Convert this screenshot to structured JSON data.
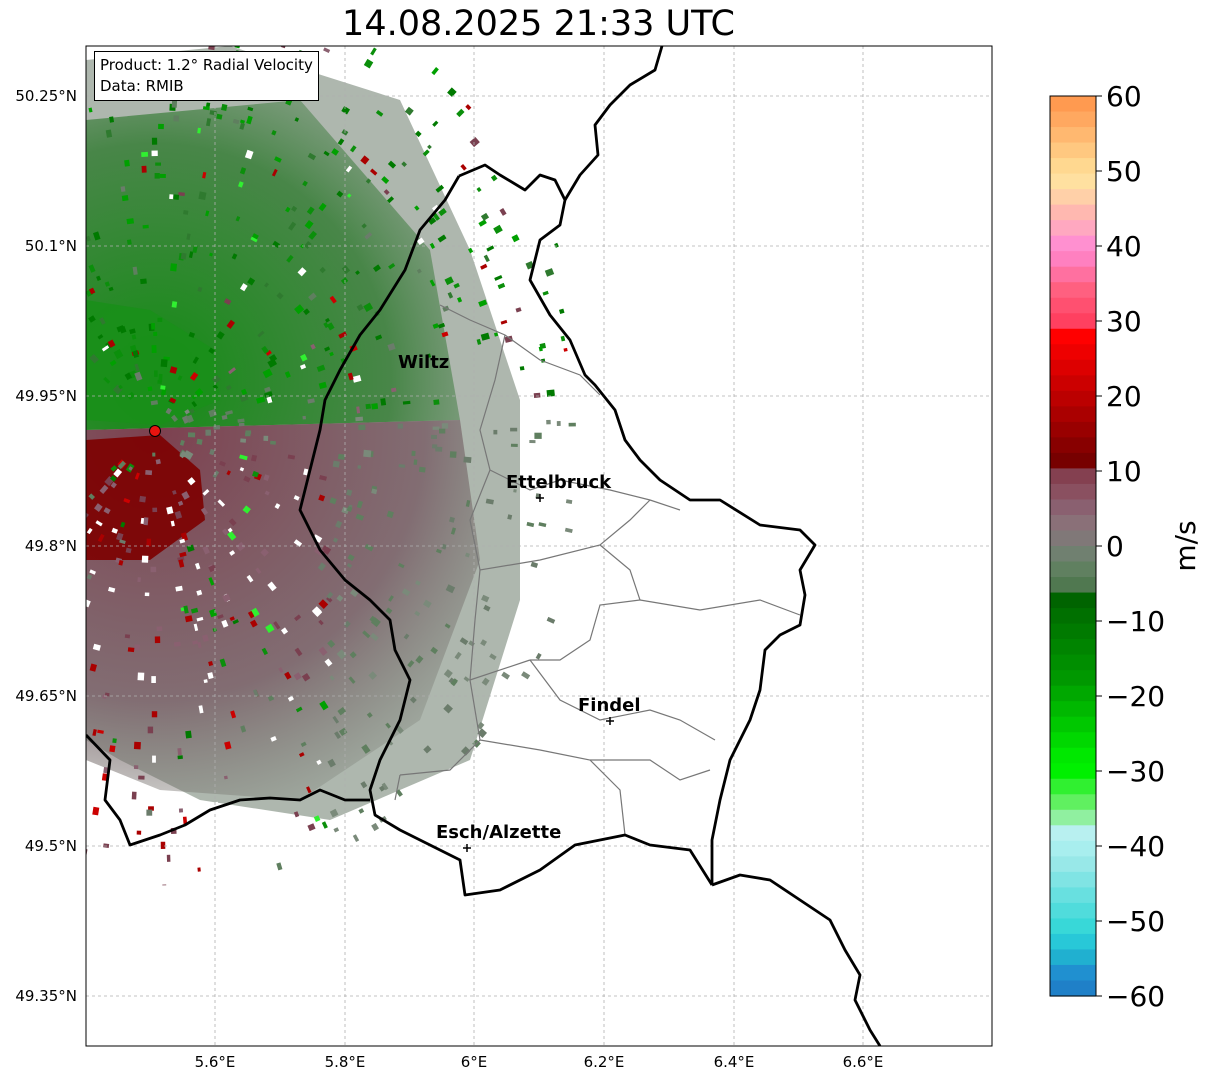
{
  "title": "14.08.2025 21:33 UTC",
  "info": {
    "product": "Product: 1.2° Radial Velocity",
    "data": "Data: RMIB"
  },
  "axes": {
    "lat_ticks": [
      "50.25°N",
      "50.1°N",
      "49.95°N",
      "49.8°N",
      "49.65°N",
      "49.5°N",
      "49.35°N"
    ],
    "lon_ticks": [
      "5.6°E",
      "5.8°E",
      "6°E",
      "6.2°E",
      "6.4°E",
      "6.6°E"
    ],
    "grid": true
  },
  "cities": [
    {
      "name": "Wiltz",
      "marker": false
    },
    {
      "name": "Ettelbruck",
      "marker": true
    },
    {
      "name": "Findel",
      "marker": true
    },
    {
      "name": "Esch/Alzette",
      "marker": true
    }
  ],
  "radar_site_color": "#e8140f",
  "colorbar": {
    "label": "m/s",
    "ticks": [
      "60",
      "50",
      "40",
      "30",
      "20",
      "10",
      "0",
      "−10",
      "−20",
      "−30",
      "−40",
      "−50",
      "−60"
    ],
    "range": [
      -60,
      60
    ]
  }
}
